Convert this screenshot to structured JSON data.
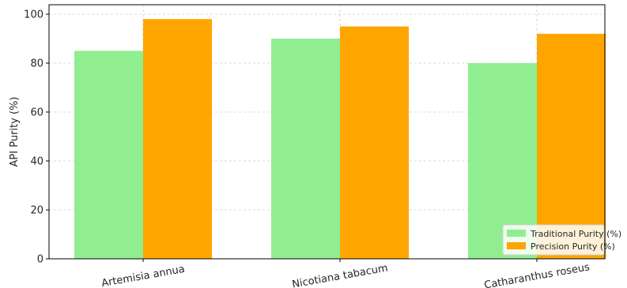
{
  "chart_data": {
    "type": "bar",
    "title": "",
    "xlabel": "",
    "ylabel": "API Purity (%)",
    "categories": [
      "Artemisia annua",
      "Nicotiana tabacum",
      "Catharanthus roseus"
    ],
    "series": [
      {
        "name": "Traditional Purity (%)",
        "values": [
          85,
          90,
          80
        ],
        "color": "#90ee90"
      },
      {
        "name": "Precision Purity (%)",
        "values": [
          98,
          95,
          92
        ],
        "color": "#ffa500"
      }
    ],
    "ylim": [
      0,
      100
    ],
    "yticks": [
      "0",
      "20",
      "40",
      "60",
      "80",
      "100"
    ],
    "grid": true,
    "legend_position": "bottom-right"
  }
}
